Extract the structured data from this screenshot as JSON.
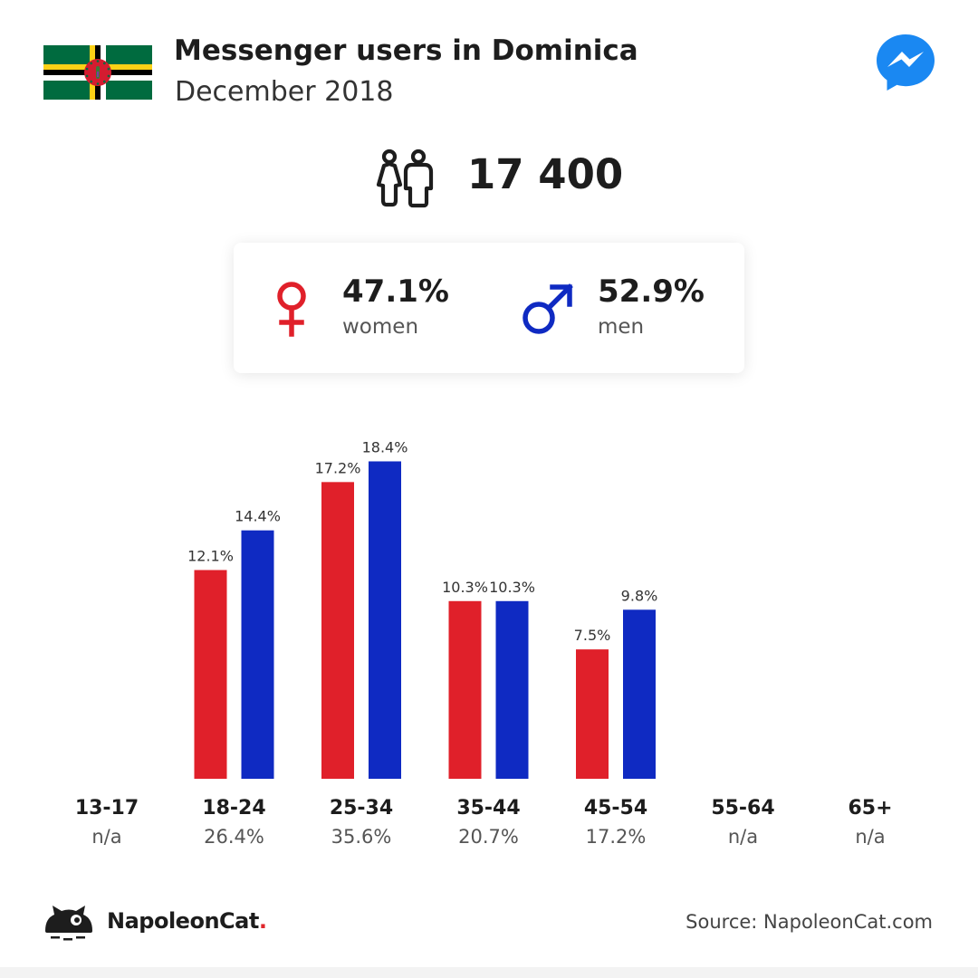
{
  "header": {
    "title": "Messenger users in Dominica",
    "subtitle": "December 2018",
    "flag_icon": "dominica-flag",
    "brand_icon": "messenger-icon"
  },
  "total": {
    "icon": "people-icon",
    "value": "17 400"
  },
  "gender": {
    "women": {
      "pct": "47.1%",
      "label": "women",
      "icon": "female-icon",
      "color": "#e0202a"
    },
    "men": {
      "pct": "52.9%",
      "label": "men",
      "icon": "male-icon",
      "color": "#0f2ac2"
    }
  },
  "chart_data": {
    "type": "bar",
    "categories": [
      "13-17",
      "18-24",
      "25-34",
      "35-44",
      "45-54",
      "55-64",
      "65+"
    ],
    "category_totals": [
      "n/a",
      "26.4%",
      "35.6%",
      "20.7%",
      "17.2%",
      "n/a",
      "n/a"
    ],
    "series": [
      {
        "name": "women",
        "color": "#e0202a",
        "values": [
          null,
          12.1,
          17.2,
          10.3,
          7.5,
          null,
          null
        ]
      },
      {
        "name": "men",
        "color": "#0f2ac2",
        "values": [
          null,
          14.4,
          18.4,
          10.3,
          9.8,
          null,
          null
        ]
      }
    ],
    "value_suffix": "%",
    "ylim": [
      0,
      20
    ],
    "grid": false
  },
  "footer": {
    "brand": "NapoleonCat",
    "brand_dot": ".",
    "logo_icon": "napoleoncat-logo-icon",
    "source": "Source: NapoleonCat.com"
  }
}
